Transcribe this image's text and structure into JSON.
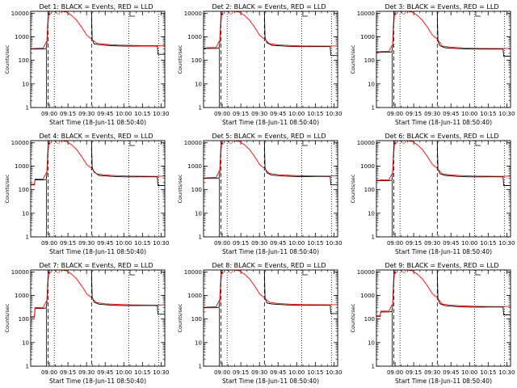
{
  "chart_data": {
    "type": "line",
    "ylabel": "Counts/sec",
    "xlabel": "Start Time (18-Jun-11 08:50:40)",
    "yscale": "log",
    "ylim": [
      1,
      12000
    ],
    "y_ticks": [
      1,
      10,
      100,
      1000,
      10000
    ],
    "y_tick_labels": [
      "1",
      "10",
      "100",
      "1000",
      "10000"
    ],
    "x_ticks": [
      "09:00",
      "09:15",
      "09:30",
      "09:45",
      "10:00",
      "10:15",
      "10:30"
    ],
    "x_tick_labels": [
      "09:00",
      "09:15",
      "09:30",
      "09:45",
      "10:00",
      "10:15",
      "10:30"
    ],
    "xlim_min": [
      -5,
      103
    ],
    "colors": {
      "events": "#000000",
      "lld": "#ff0000",
      "axes": "#000000"
    },
    "vlines": [
      {
        "x_min": 9,
        "style": "dashed"
      },
      {
        "x_min": 14,
        "style": "dotted"
      },
      {
        "x_min": 44,
        "style": "dashed"
      },
      {
        "x_min": 74,
        "style": "dotted"
      },
      {
        "x_min": 98,
        "style": "dotted"
      }
    ],
    "panels": [
      {
        "title": "Det 1: BLACK = Events, RED = LLD",
        "baseline": 300,
        "low_start": 300,
        "post": 500,
        "level": 400,
        "end_drop": 180
      },
      {
        "title": "Det 2: BLACK = Events, RED = LLD",
        "baseline": 320,
        "low_start": 320,
        "post": 560,
        "level": 380,
        "end_drop": 160
      },
      {
        "title": "Det 3: BLACK = Events, RED = LLD",
        "baseline": 220,
        "low_start": 220,
        "post": 420,
        "level": 300,
        "end_drop": 150
      },
      {
        "title": "Det 4: BLACK = Events, RED = LLD",
        "baseline": 260,
        "low_start": 160,
        "post": 560,
        "level": 350,
        "end_drop": 150
      },
      {
        "title": "Det 5: BLACK = Events, RED = LLD",
        "baseline": 300,
        "low_start": 300,
        "post": 520,
        "level": 360,
        "end_drop": 160
      },
      {
        "title": "Det 6: BLACK = Events, RED = LLD",
        "baseline": 240,
        "low_start": 240,
        "post": 480,
        "level": 350,
        "end_drop": 150
      },
      {
        "title": "Det 7: BLACK = Events, RED = LLD",
        "baseline": 280,
        "low_start": 120,
        "post": 520,
        "level": 370,
        "end_drop": 160
      },
      {
        "title": "Det 8: BLACK = Events, RED = LLD",
        "baseline": 300,
        "low_start": 300,
        "post": 480,
        "level": 380,
        "end_drop": 170
      },
      {
        "title": "Det 9: BLACK = Events, RED = LLD",
        "baseline": 200,
        "low_start": 130,
        "post": 450,
        "level": 320,
        "end_drop": 150
      }
    ]
  }
}
